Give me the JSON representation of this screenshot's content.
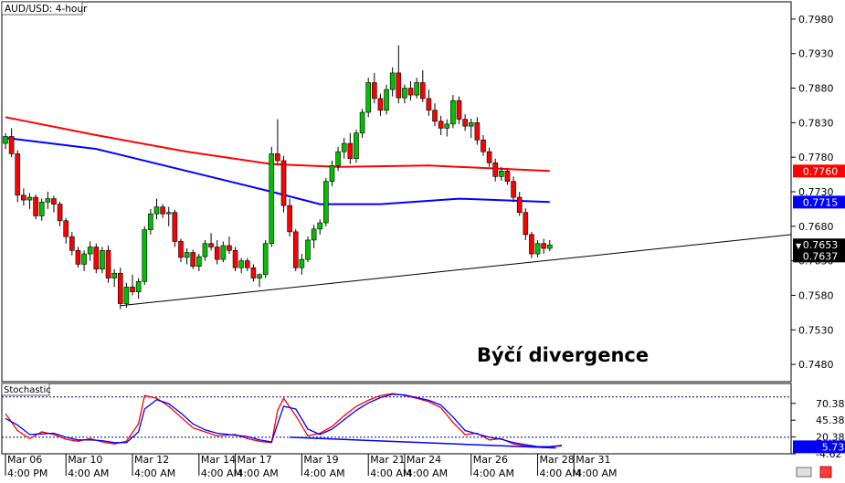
{
  "chart_data": [
    {
      "type": "candlestick",
      "title": "AUD/USD: 4-hour",
      "annotation": "Býčí divergence",
      "ylim": [
        0.7455,
        0.8005
      ],
      "y_ticks": [
        "0.7980",
        "0.7930",
        "0.7880",
        "0.7830",
        "0.7780",
        "0.7730",
        "0.7680",
        "0.7630",
        "0.7580",
        "0.7530",
        "0.7480"
      ],
      "price_labels": [
        {
          "value": 0.776,
          "text": "0.7760",
          "color": "#ff0000"
        },
        {
          "value": 0.7715,
          "text": "0.7715",
          "color": "#0000ff"
        },
        {
          "value": 0.7653,
          "text": "0.7653",
          "color": "#000000"
        },
        {
          "value": 0.7637,
          "text": "0.7637",
          "color": "#000000"
        }
      ],
      "colors": {
        "up": "#00c000",
        "down": "#ff0000",
        "ma_slow": "#ff0000",
        "ma_fast": "#0000ff",
        "trendline": "#000000"
      },
      "x_labels": [
        {
          "line1": "Mar 06",
          "line2": "4:00 PM",
          "index": 0
        },
        {
          "line1": "Mar 10",
          "line2": "4:00 AM",
          "index": 10
        },
        {
          "line1": "Mar 12",
          "line2": "4:00 AM",
          "index": 21
        },
        {
          "line1": "Mar 14",
          "line2": "4:00 AM",
          "index": 32
        },
        {
          "line1": "Mar 17",
          "line2": "4:00 AM",
          "index": 38
        },
        {
          "line1": "Mar 19",
          "line2": "4:00 AM",
          "index": 49
        },
        {
          "line1": "Mar 21",
          "line2": "4:00 AM",
          "index": 60
        },
        {
          "line1": "Mar 24",
          "line2": "4:00 AM",
          "index": 66
        },
        {
          "line1": "Mar 26",
          "line2": "4:00 AM",
          "index": 77
        },
        {
          "line1": "Mar 28",
          "line2": "4:00 AM",
          "index": 88
        },
        {
          "line1": "Mar 31",
          "line2": "4:00 AM",
          "index": 94
        }
      ],
      "candles": [
        [
          0.78,
          0.7815,
          0.7792,
          0.781
        ],
        [
          0.781,
          0.7822,
          0.778,
          0.7785
        ],
        [
          0.7785,
          0.779,
          0.7715,
          0.7725
        ],
        [
          0.7725,
          0.7735,
          0.771,
          0.7718
        ],
        [
          0.7718,
          0.7728,
          0.7705,
          0.7722
        ],
        [
          0.7722,
          0.7726,
          0.769,
          0.7695
        ],
        [
          0.7695,
          0.772,
          0.7688,
          0.7715
        ],
        [
          0.7715,
          0.773,
          0.7705,
          0.772
        ],
        [
          0.772,
          0.7724,
          0.77,
          0.7712
        ],
        [
          0.7712,
          0.7716,
          0.768,
          0.7688
        ],
        [
          0.7688,
          0.7692,
          0.7655,
          0.7665
        ],
        [
          0.7665,
          0.7672,
          0.7638,
          0.7645
        ],
        [
          0.7645,
          0.765,
          0.762,
          0.7625
        ],
        [
          0.7625,
          0.7645,
          0.7615,
          0.764
        ],
        [
          0.764,
          0.7658,
          0.763,
          0.765
        ],
        [
          0.765,
          0.7655,
          0.7612,
          0.7618
        ],
        [
          0.7618,
          0.765,
          0.7612,
          0.7645
        ],
        [
          0.7645,
          0.7652,
          0.7598,
          0.7605
        ],
        [
          0.7605,
          0.7618,
          0.7592,
          0.7612
        ],
        [
          0.7612,
          0.762,
          0.756,
          0.7568
        ],
        [
          0.7568,
          0.7598,
          0.7562,
          0.7592
        ],
        [
          0.7592,
          0.761,
          0.758,
          0.7585
        ],
        [
          0.7585,
          0.7605,
          0.7575,
          0.76
        ],
        [
          0.76,
          0.768,
          0.7595,
          0.7675
        ],
        [
          0.7675,
          0.7705,
          0.7668,
          0.7698
        ],
        [
          0.7698,
          0.772,
          0.769,
          0.7708
        ],
        [
          0.7708,
          0.7712,
          0.7692,
          0.7698
        ],
        [
          0.7698,
          0.7708,
          0.768,
          0.77
        ],
        [
          0.77,
          0.7704,
          0.765,
          0.7658
        ],
        [
          0.7658,
          0.7662,
          0.7628,
          0.7635
        ],
        [
          0.7635,
          0.7648,
          0.7625,
          0.7642
        ],
        [
          0.7642,
          0.7646,
          0.7618,
          0.7622
        ],
        [
          0.7622,
          0.764,
          0.7615,
          0.7636
        ],
        [
          0.7636,
          0.766,
          0.763,
          0.7655
        ],
        [
          0.7655,
          0.767,
          0.7645,
          0.765
        ],
        [
          0.765,
          0.766,
          0.7625,
          0.7632
        ],
        [
          0.7632,
          0.7658,
          0.7628,
          0.7652
        ],
        [
          0.7652,
          0.7665,
          0.764,
          0.7645
        ],
        [
          0.7645,
          0.765,
          0.7615,
          0.762
        ],
        [
          0.762,
          0.7634,
          0.7612,
          0.763
        ],
        [
          0.763,
          0.7634,
          0.7615,
          0.762
        ],
        [
          0.762,
          0.7625,
          0.76,
          0.7605
        ],
        [
          0.7605,
          0.7612,
          0.7592,
          0.761
        ],
        [
          0.761,
          0.766,
          0.7605,
          0.7655
        ],
        [
          0.7655,
          0.7795,
          0.765,
          0.7785
        ],
        [
          0.7785,
          0.7835,
          0.777,
          0.7775
        ],
        [
          0.7775,
          0.7782,
          0.77,
          0.771
        ],
        [
          0.771,
          0.772,
          0.7665,
          0.7672
        ],
        [
          0.7672,
          0.7676,
          0.7615,
          0.762
        ],
        [
          0.762,
          0.764,
          0.761,
          0.7632
        ],
        [
          0.7632,
          0.7665,
          0.7628,
          0.766
        ],
        [
          0.766,
          0.7682,
          0.7648,
          0.7676
        ],
        [
          0.7676,
          0.769,
          0.7668,
          0.7685
        ],
        [
          0.7685,
          0.775,
          0.768,
          0.7745
        ],
        [
          0.7745,
          0.7775,
          0.7738,
          0.7768
        ],
        [
          0.7768,
          0.7795,
          0.776,
          0.7788
        ],
        [
          0.7788,
          0.7808,
          0.7778,
          0.78
        ],
        [
          0.78,
          0.7815,
          0.777,
          0.7778
        ],
        [
          0.7778,
          0.782,
          0.7772,
          0.7815
        ],
        [
          0.7815,
          0.785,
          0.7808,
          0.7845
        ],
        [
          0.7845,
          0.7895,
          0.7838,
          0.7888
        ],
        [
          0.7888,
          0.7902,
          0.7858,
          0.7865
        ],
        [
          0.7865,
          0.7872,
          0.784,
          0.7848
        ],
        [
          0.7848,
          0.7885,
          0.7842,
          0.7878
        ],
        [
          0.7878,
          0.791,
          0.7868,
          0.7902
        ],
        [
          0.7902,
          0.7942,
          0.7858,
          0.7866
        ],
        [
          0.7866,
          0.7885,
          0.7858,
          0.788
        ],
        [
          0.788,
          0.789,
          0.7862,
          0.787
        ],
        [
          0.787,
          0.7895,
          0.7865,
          0.7888
        ],
        [
          0.7888,
          0.7906,
          0.786,
          0.7865
        ],
        [
          0.7865,
          0.7878,
          0.784,
          0.7848
        ],
        [
          0.7848,
          0.7858,
          0.7825,
          0.7832
        ],
        [
          0.7832,
          0.784,
          0.7812,
          0.7822
        ],
        [
          0.7822,
          0.7835,
          0.781,
          0.7828
        ],
        [
          0.7828,
          0.787,
          0.7822,
          0.7862
        ],
        [
          0.7862,
          0.7868,
          0.7828,
          0.7835
        ],
        [
          0.7835,
          0.7842,
          0.7818,
          0.7825
        ],
        [
          0.7825,
          0.7836,
          0.7808,
          0.783
        ],
        [
          0.783,
          0.7838,
          0.7798,
          0.7805
        ],
        [
          0.7805,
          0.7812,
          0.7782,
          0.7788
        ],
        [
          0.7788,
          0.7794,
          0.7766,
          0.7772
        ],
        [
          0.7772,
          0.7778,
          0.7745,
          0.7752
        ],
        [
          0.7752,
          0.7766,
          0.7746,
          0.776
        ],
        [
          0.776,
          0.7764,
          0.774,
          0.7745
        ],
        [
          0.7745,
          0.7752,
          0.7715,
          0.7722
        ],
        [
          0.7722,
          0.773,
          0.7695,
          0.77
        ],
        [
          0.77,
          0.7706,
          0.766,
          0.7668
        ],
        [
          0.7668,
          0.7672,
          0.7634,
          0.764
        ],
        [
          0.764,
          0.766,
          0.7635,
          0.7655
        ],
        [
          0.7655,
          0.7662,
          0.764,
          0.7648
        ],
        [
          0.7648,
          0.766,
          0.7644,
          0.7653
        ]
      ],
      "ma_slow": [
        {
          "i": 0,
          "v": 0.7838
        },
        {
          "i": 15,
          "v": 0.7812
        },
        {
          "i": 30,
          "v": 0.7788
        },
        {
          "i": 44,
          "v": 0.777
        },
        {
          "i": 55,
          "v": 0.7766
        },
        {
          "i": 70,
          "v": 0.7768
        },
        {
          "i": 90,
          "v": 0.776
        }
      ],
      "ma_fast": [
        {
          "i": 0,
          "v": 0.7808
        },
        {
          "i": 15,
          "v": 0.7792
        },
        {
          "i": 30,
          "v": 0.776
        },
        {
          "i": 44,
          "v": 0.773
        },
        {
          "i": 52,
          "v": 0.7712
        },
        {
          "i": 62,
          "v": 0.7712
        },
        {
          "i": 75,
          "v": 0.772
        },
        {
          "i": 90,
          "v": 0.7715
        }
      ],
      "trendline": [
        {
          "i": 19,
          "v": 0.7565
        },
        {
          "i": 130,
          "v": 0.7668
        }
      ]
    },
    {
      "type": "line",
      "title": "Stochastic",
      "ylim": [
        -4.62,
        100
      ],
      "y_ticks": [
        "70.38",
        "45.38",
        "20.38",
        "-4.62"
      ],
      "levels": [
        80,
        20
      ],
      "current_label": {
        "value": 5.73,
        "text": "5.73"
      },
      "colors": {
        "k": "#ff0000",
        "d": "#0000ff",
        "divergence": "#0000ff",
        "levels": "#000080"
      },
      "series": [
        {
          "key": "k",
          "values": [
            [
              0,
              55
            ],
            [
              2,
              30
            ],
            [
              4,
              18
            ],
            [
              6,
              28
            ],
            [
              8,
              24
            ],
            [
              10,
              17
            ],
            [
              12,
              14
            ],
            [
              14,
              18
            ],
            [
              16,
              13
            ],
            [
              18,
              10
            ],
            [
              20,
              14
            ],
            [
              22,
              40
            ],
            [
              23,
              82
            ],
            [
              25,
              78
            ],
            [
              27,
              66
            ],
            [
              29,
              50
            ],
            [
              31,
              34
            ],
            [
              33,
              28
            ],
            [
              35,
              22
            ],
            [
              38,
              24
            ],
            [
              40,
              18
            ],
            [
              42,
              14
            ],
            [
              44,
              12
            ],
            [
              45,
              60
            ],
            [
              46,
              78
            ],
            [
              48,
              52
            ],
            [
              50,
              22
            ],
            [
              52,
              26
            ],
            [
              54,
              36
            ],
            [
              56,
              52
            ],
            [
              58,
              66
            ],
            [
              60,
              75
            ],
            [
              62,
              82
            ],
            [
              64,
              85
            ],
            [
              66,
              82
            ],
            [
              68,
              78
            ],
            [
              70,
              73
            ],
            [
              72,
              64
            ],
            [
              74,
              42
            ],
            [
              76,
              24
            ],
            [
              78,
              26
            ],
            [
              80,
              16
            ],
            [
              82,
              18
            ],
            [
              84,
              10
            ],
            [
              86,
              7
            ],
            [
              88,
              5
            ],
            [
              90,
              6
            ],
            [
              92,
              8
            ]
          ]
        },
        {
          "key": "d",
          "values": [
            [
              0,
              48
            ],
            [
              2,
              38
            ],
            [
              4,
              24
            ],
            [
              6,
              25
            ],
            [
              8,
              26
            ],
            [
              10,
              20
            ],
            [
              12,
              16
            ],
            [
              14,
              16
            ],
            [
              16,
              15
            ],
            [
              18,
              12
            ],
            [
              20,
              12
            ],
            [
              22,
              28
            ],
            [
              23,
              62
            ],
            [
              25,
              76
            ],
            [
              27,
              70
            ],
            [
              29,
              56
            ],
            [
              31,
              40
            ],
            [
              33,
              31
            ],
            [
              35,
              26
            ],
            [
              38,
              23
            ],
            [
              40,
              21
            ],
            [
              42,
              16
            ],
            [
              44,
              13
            ],
            [
              45,
              40
            ],
            [
              46,
              66
            ],
            [
              48,
              62
            ],
            [
              50,
              32
            ],
            [
              52,
              24
            ],
            [
              54,
              32
            ],
            [
              56,
              46
            ],
            [
              58,
              60
            ],
            [
              60,
              71
            ],
            [
              62,
              79
            ],
            [
              64,
              84
            ],
            [
              66,
              83
            ],
            [
              68,
              79
            ],
            [
              70,
              75
            ],
            [
              72,
              68
            ],
            [
              74,
              50
            ],
            [
              76,
              30
            ],
            [
              78,
              25
            ],
            [
              80,
              20
            ],
            [
              82,
              17
            ],
            [
              84,
              12
            ],
            [
              86,
              9
            ],
            [
              88,
              6
            ],
            [
              90,
              6
            ],
            [
              92,
              7
            ]
          ]
        }
      ],
      "divergence_line": [
        {
          "i": 47,
          "v": 20
        },
        {
          "i": 91,
          "v": 4
        }
      ]
    }
  ]
}
